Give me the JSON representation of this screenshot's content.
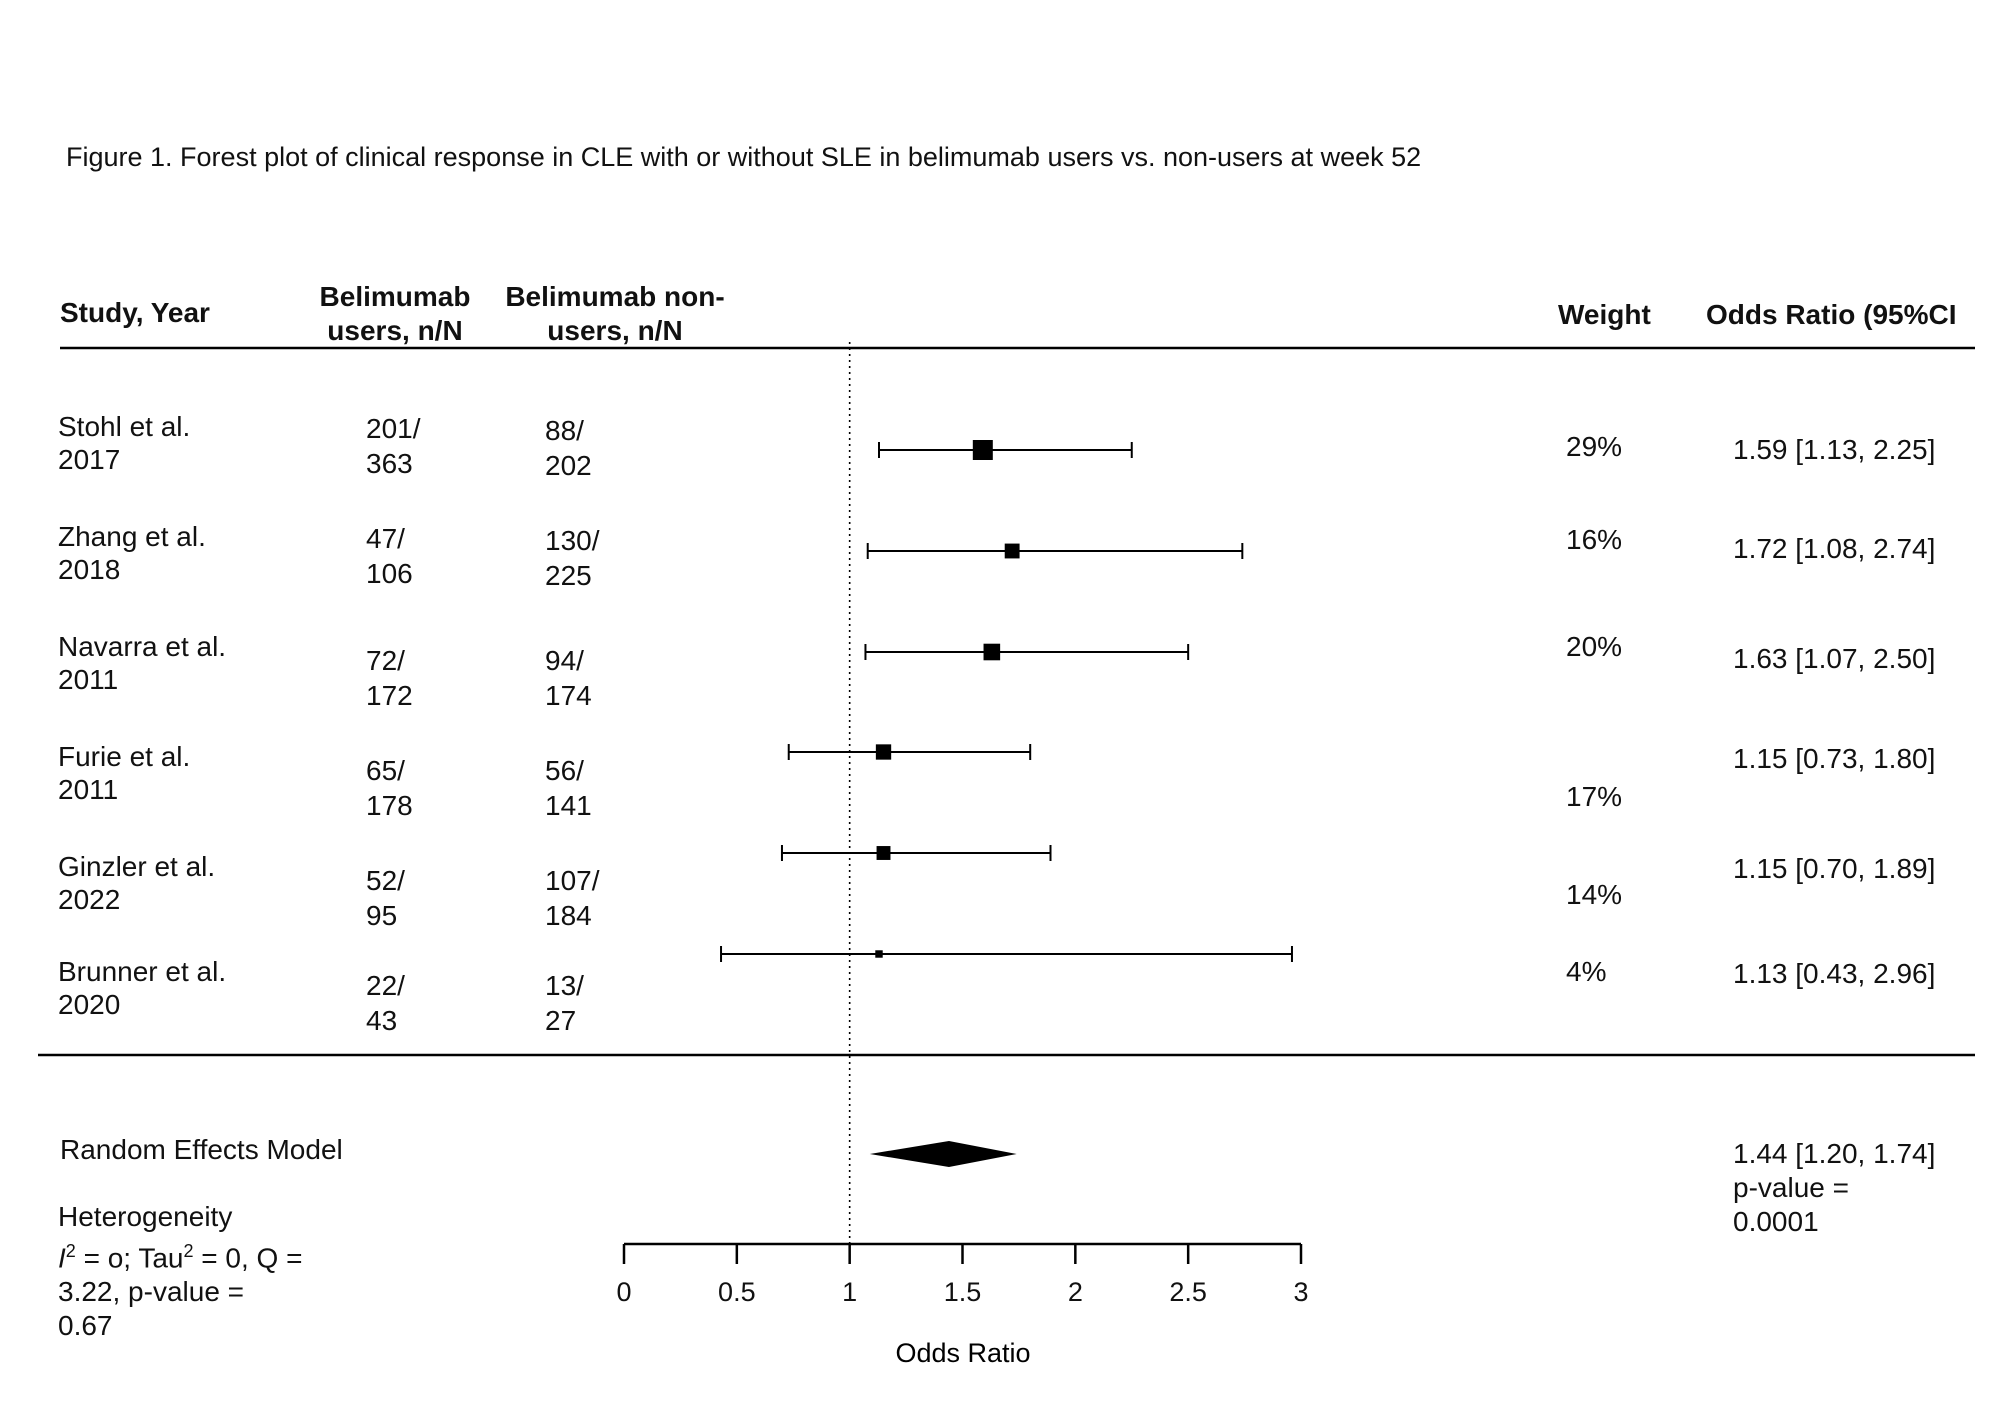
{
  "figure_title": "Figure 1. Forest plot of clinical response in CLE with or without SLE in belimumab users vs. non-users at week 52",
  "headers": {
    "study": "Study, Year",
    "users_line1": "Belimumab",
    "users_line2": "users, n/N",
    "nonusers_line1": "Belimumab non-",
    "nonusers_line2": "users, n/N",
    "weight": "Weight",
    "or": "Odds Ratio (95%CI"
  },
  "studies": [
    {
      "name": "Stohl et al.",
      "year": "2017",
      "users_n": "201/",
      "users_N": "363",
      "non_n": "88/",
      "non_N": "202",
      "weight": "29%",
      "or_text": "1.59 [1.13, 2.25]"
    },
    {
      "name": "Zhang et al.",
      "year": "2018",
      "users_n": "47/",
      "users_N": "106",
      "non_n": "130/",
      "non_N": "225",
      "weight": "16%",
      "or_text": "1.72 [1.08, 2.74]"
    },
    {
      "name": "Navarra et al.",
      "year": "2011",
      "users_n": "72/",
      "users_N": "172",
      "non_n": "94/",
      "non_N": "174",
      "weight": "20%",
      "or_text": "1.63 [1.07, 2.50]"
    },
    {
      "name": "Furie et al.",
      "year": "2011",
      "users_n": "65/",
      "users_N": "178",
      "non_n": "56/",
      "non_N": "141",
      "weight": "17%",
      "or_text": "1.15 [0.73, 1.80]"
    },
    {
      "name": "Ginzler et al.",
      "year": "2022",
      "users_n": "52/",
      "users_N": "95",
      "non_n": "107/",
      "non_N": "184",
      "weight": "14%",
      "or_text": "1.15 [0.70, 1.89]"
    },
    {
      "name": "Brunner et al.",
      "year": "2020",
      "users_n": "22/",
      "users_N": "43",
      "non_n": "13/",
      "non_N": "27",
      "weight": "4%",
      "or_text": "1.13 [0.43, 2.96]"
    }
  ],
  "summary": {
    "label": "Random Effects Model",
    "or_line1": "1.44 [1.20, 1.74]",
    "or_line2": "p-value =",
    "or_line3": "0.0001",
    "heterogeneity_label": "Heterogeneity",
    "het_line2_tail": " = o; Tau",
    "het_line2_end": " = 0, Q =",
    "het_line3": "3.22, p-value =",
    "het_line4": "0.67",
    "het_I": "I",
    "het_sup": "2"
  },
  "chart_data": {
    "type": "forest",
    "xlabel": "Odds Ratio",
    "xlim": [
      0,
      3
    ],
    "ticks": [
      0,
      0.5,
      1,
      1.5,
      2,
      2.5,
      3
    ],
    "tick_labels": [
      "0",
      "0.5",
      "1",
      "1.5",
      "2",
      "2.5",
      "3"
    ],
    "reference_line": 1,
    "estimates": [
      {
        "or": 1.59,
        "lo": 1.13,
        "hi": 2.25,
        "weight": 0.29
      },
      {
        "or": 1.72,
        "lo": 1.08,
        "hi": 2.74,
        "weight": 0.16
      },
      {
        "or": 1.63,
        "lo": 1.07,
        "hi": 2.5,
        "weight": 0.2
      },
      {
        "or": 1.15,
        "lo": 0.73,
        "hi": 1.8,
        "weight": 0.17
      },
      {
        "or": 1.15,
        "lo": 0.7,
        "hi": 1.89,
        "weight": 0.14
      },
      {
        "or": 1.13,
        "lo": 0.43,
        "hi": 2.96,
        "weight": 0.04
      }
    ],
    "pooled": {
      "or": 1.44,
      "lo": 1.2,
      "hi": 1.74
    }
  }
}
